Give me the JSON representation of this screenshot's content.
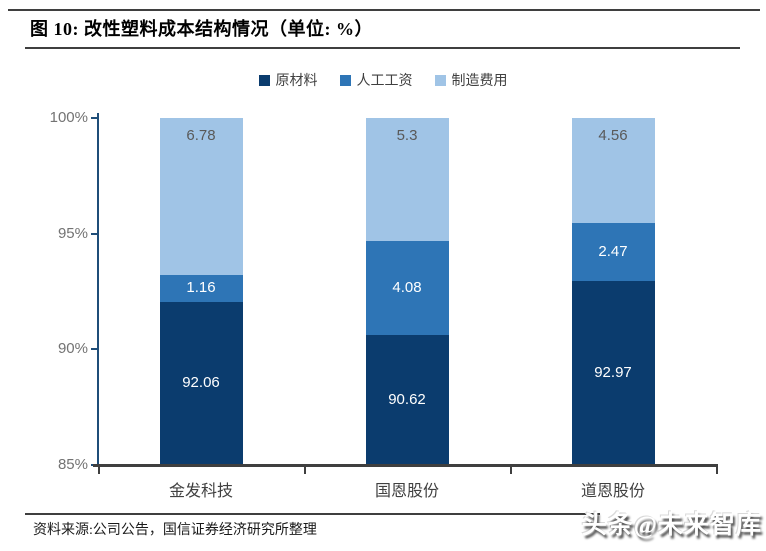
{
  "figure": {
    "title": "图 10:  改性塑料成本结构情况（单位: %）",
    "source": "资料来源:公司公告，国信证券经济研究所整理",
    "watermark": "头条@未来智库"
  },
  "colors": {
    "raw_material": "#0B3C6E",
    "labor_wage": "#2E75B6",
    "manufacturing": "#A0C4E6",
    "y_axis_line": "#1F4E79",
    "x_axis_line": "#3f3f3f",
    "tick_label": "#737373"
  },
  "chart_data": {
    "type": "bar",
    "stacked": true,
    "title": "改性塑料成本结构情况",
    "unit": "%",
    "categories": [
      "金发科技",
      "国恩股份",
      "道恩股份"
    ],
    "series": [
      {
        "name": "原材料",
        "color": "#0B3C6E",
        "label_color": "#ffffff",
        "label_pos": "center",
        "values": [
          92.06,
          90.62,
          92.97
        ]
      },
      {
        "name": "人工工资",
        "color": "#2E75B6",
        "label_color": "#ffffff",
        "label_pos": "center",
        "values": [
          1.16,
          4.08,
          2.47
        ]
      },
      {
        "name": "制造费用",
        "color": "#A0C4E6",
        "label_color": "#595959",
        "label_pos": "inside-end",
        "values": [
          6.78,
          5.3,
          4.56
        ]
      }
    ],
    "ylim": [
      85,
      100
    ],
    "yticks": [
      {
        "value": 100,
        "label": "100%"
      },
      {
        "value": 95,
        "label": "95%"
      },
      {
        "value": 90,
        "label": "90%"
      },
      {
        "value": 85,
        "label": "85%"
      }
    ],
    "grid": false,
    "legend_position": "top"
  }
}
